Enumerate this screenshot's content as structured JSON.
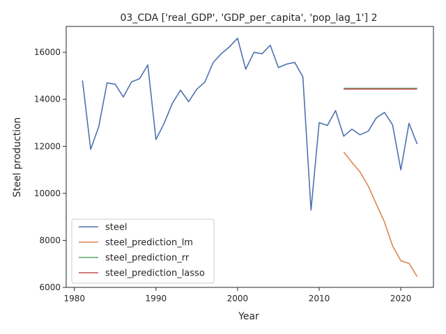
{
  "chart_data": {
    "type": "line",
    "title": "03_CDA ['real_GDP', 'GDP_per_capita', 'pop_lag_1'] 2",
    "xlabel": "Year",
    "ylabel": "Steel production",
    "xlim": [
      1979,
      2024
    ],
    "ylim": [
      6000,
      17100
    ],
    "xticks": [
      1980,
      1990,
      2000,
      2010,
      2020
    ],
    "yticks": [
      6000,
      8000,
      10000,
      12000,
      14000,
      16000
    ],
    "grid": false,
    "legend_position": "lower-left",
    "series": [
      {
        "name": "steel",
        "color": "#4c72b0",
        "x": [
          1981,
          1982,
          1983,
          1984,
          1985,
          1986,
          1987,
          1988,
          1989,
          1990,
          1991,
          1992,
          1993,
          1994,
          1995,
          1996,
          1997,
          1998,
          1999,
          2000,
          2001,
          2002,
          2003,
          2004,
          2005,
          2006,
          2007,
          2008,
          2009,
          2010,
          2011,
          2012,
          2013,
          2014,
          2015,
          2016,
          2017,
          2018,
          2019,
          2020,
          2021,
          2022
        ],
        "y": [
          14800,
          11870,
          12850,
          14700,
          14640,
          14100,
          14740,
          14880,
          15460,
          12290,
          12980,
          13820,
          14390,
          13900,
          14430,
          14740,
          15560,
          15940,
          16230,
          16600,
          15280,
          16000,
          15940,
          16300,
          15350,
          15500,
          15570,
          14960,
          9290,
          13010,
          12890,
          13520,
          12430,
          12730,
          12490,
          12640,
          13210,
          13440,
          12910,
          11000,
          12980,
          12100
        ]
      },
      {
        "name": "steel_prediction_lm",
        "color": "#dd8452",
        "x": [
          2013,
          2014,
          2015,
          2016,
          2017,
          2018,
          2019,
          2020,
          2021,
          2022
        ],
        "y": [
          11760,
          11320,
          10910,
          10320,
          9540,
          8780,
          7760,
          7130,
          7020,
          6460
        ]
      },
      {
        "name": "steel_prediction_rr",
        "color": "#55a868",
        "x": [
          2013,
          2014,
          2015,
          2016,
          2017,
          2018,
          2019,
          2020,
          2021,
          2022
        ],
        "y": [
          14470,
          14470,
          14470,
          14470,
          14470,
          14470,
          14470,
          14470,
          14470,
          14470
        ]
      },
      {
        "name": "steel_prediction_lasso",
        "color": "#c44e52",
        "x": [
          2013,
          2014,
          2015,
          2016,
          2017,
          2018,
          2019,
          2020,
          2021,
          2022
        ],
        "y": [
          14440,
          14440,
          14440,
          14440,
          14440,
          14440,
          14440,
          14440,
          14440,
          14440
        ]
      }
    ]
  }
}
